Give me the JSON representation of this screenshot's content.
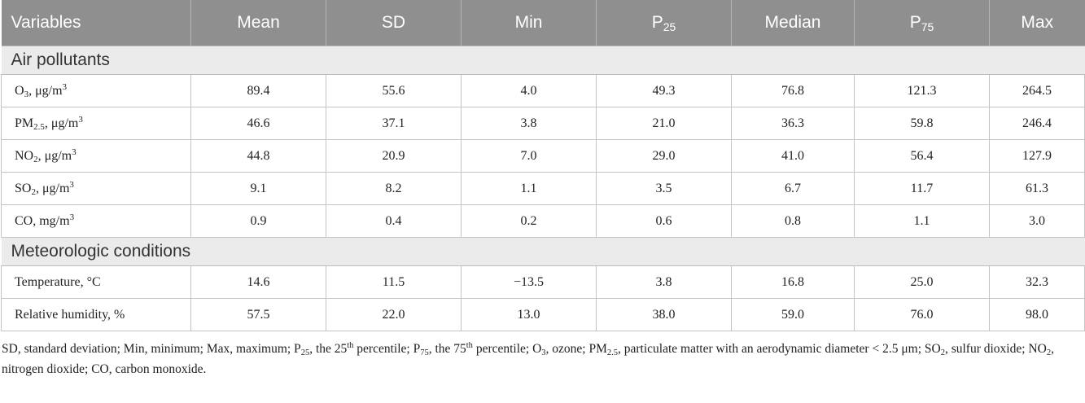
{
  "table": {
    "headers": [
      "Variables",
      "Mean",
      "SD",
      "Min",
      "P",
      "Median",
      "P",
      "Max"
    ],
    "header_subscripts": {
      "p25": "25",
      "p75": "75"
    },
    "sections": [
      {
        "title": "Air pollutants",
        "rows": [
          {
            "name": "O",
            "sub": "3",
            "unit": ", μg/m",
            "unit_sup": "3",
            "values": [
              "89.4",
              "55.6",
              "4.0",
              "49.3",
              "76.8",
              "121.3",
              "264.5"
            ]
          },
          {
            "name": "PM",
            "sub": "2.5",
            "unit": ", μg/m",
            "unit_sup": "3",
            "values": [
              "46.6",
              "37.1",
              "3.8",
              "21.0",
              "36.3",
              "59.8",
              "246.4"
            ]
          },
          {
            "name": "NO",
            "sub": "2",
            "unit": ", μg/m",
            "unit_sup": "3",
            "values": [
              "44.8",
              "20.9",
              "7.0",
              "29.0",
              "41.0",
              "56.4",
              "127.9"
            ]
          },
          {
            "name": "SO",
            "sub": "2",
            "unit": ", μg/m",
            "unit_sup": "3",
            "values": [
              "9.1",
              "8.2",
              "1.1",
              "3.5",
              "6.7",
              "11.7",
              "61.3"
            ]
          },
          {
            "name": "CO",
            "sub": "",
            "unit": ", mg/m",
            "unit_sup": "3",
            "values": [
              "0.9",
              "0.4",
              "0.2",
              "0.6",
              "0.8",
              "1.1",
              "3.0"
            ]
          }
        ]
      },
      {
        "title": "Meteorologic conditions",
        "rows": [
          {
            "name": "Temperature, °C",
            "sub": "",
            "unit": "",
            "unit_sup": "",
            "values": [
              "14.6",
              "11.5",
              "−13.5",
              "3.8",
              "16.8",
              "25.0",
              "32.3"
            ]
          },
          {
            "name": "Relative humidity, %",
            "sub": "",
            "unit": "",
            "unit_sup": "",
            "values": [
              "57.5",
              "22.0",
              "13.0",
              "38.0",
              "59.0",
              "76.0",
              "98.0"
            ]
          }
        ]
      }
    ]
  },
  "footnote": {
    "parts": [
      "SD, standard deviation; Min, minimum; Max, maximum; P",
      "25",
      ", the 25",
      "th",
      " percentile; P",
      "75",
      ", the 75",
      "th",
      " percentile; O",
      "3",
      ", ozone; PM",
      "2.5",
      ", particulate matter with an aerodynamic diameter < 2.5 μm; SO",
      "2",
      ", sulfur dioxide; NO",
      "2",
      ", nitrogen dioxide; CO, carbon monoxide."
    ]
  }
}
